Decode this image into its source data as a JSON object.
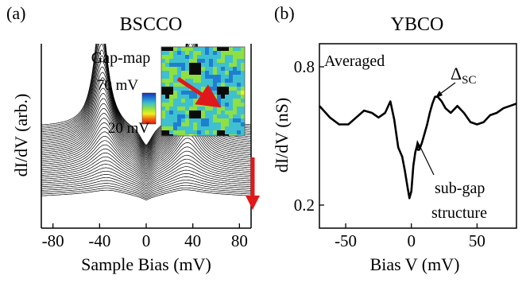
{
  "panel_a": {
    "label": "(a)",
    "title": "BSCCO",
    "inset_label": "Gap-map",
    "colorbar_top": "70 mV",
    "colorbar_bottom": "20 mV",
    "colorbar_colors": [
      "#1a2cb4",
      "#1e7fd0",
      "#3fc0d0",
      "#8fe040",
      "#f0f020",
      "#f07010",
      "#e01010"
    ],
    "arrow_color": "#e0181c"
  },
  "panel_b": {
    "label": "(b)",
    "title": "YBCO",
    "annotation_averaged": "Averaged",
    "annotation_gap_symbol": "Δ",
    "annotation_gap_sub": "SC",
    "annotation_subgap_1": "sub-gap",
    "annotation_subgap_2": "structure"
  },
  "chart_data": [
    {
      "type": "line",
      "title": "BSCCO",
      "xlabel": "Sample Bias (mV)",
      "ylabel": "dI/dV (arb.)",
      "xlim": [
        -90,
        90
      ],
      "xticks": [
        -80,
        -40,
        0,
        40,
        80
      ],
      "yticks": [],
      "n_series": 40,
      "gap_range_mV": [
        20,
        70
      ],
      "grid": false
    },
    {
      "type": "line",
      "title": "YBCO",
      "xlabel": "Bias V (mV)",
      "ylabel": "dI/dV (nS)",
      "xlim": [
        -70,
        80
      ],
      "ylim": [
        0.1,
        0.9
      ],
      "xticks": [
        -50,
        0,
        50
      ],
      "yticks": [
        0.2,
        0.8
      ],
      "grid": false,
      "series": [
        {
          "x": [
            -70,
            -62,
            -55,
            -48,
            -42,
            -36,
            -30,
            -25,
            -20,
            -16,
            -13,
            -10,
            -7,
            -5,
            -3,
            -1.5,
            0,
            1.5,
            3,
            4,
            5,
            6,
            8,
            10,
            12,
            14,
            16,
            18,
            20,
            23,
            26,
            30,
            35,
            40,
            45,
            50,
            55,
            60,
            65,
            70,
            75,
            80
          ],
          "y": [
            0.63,
            0.58,
            0.55,
            0.55,
            0.58,
            0.61,
            0.6,
            0.58,
            0.6,
            0.65,
            0.57,
            0.45,
            0.41,
            0.35,
            0.28,
            0.23,
            0.26,
            0.37,
            0.43,
            0.45,
            0.44,
            0.44,
            0.47,
            0.51,
            0.55,
            0.6,
            0.64,
            0.67,
            0.67,
            0.65,
            0.62,
            0.6,
            0.63,
            0.6,
            0.56,
            0.55,
            0.56,
            0.59,
            0.6,
            0.62,
            0.63,
            0.64
          ]
        }
      ]
    }
  ]
}
